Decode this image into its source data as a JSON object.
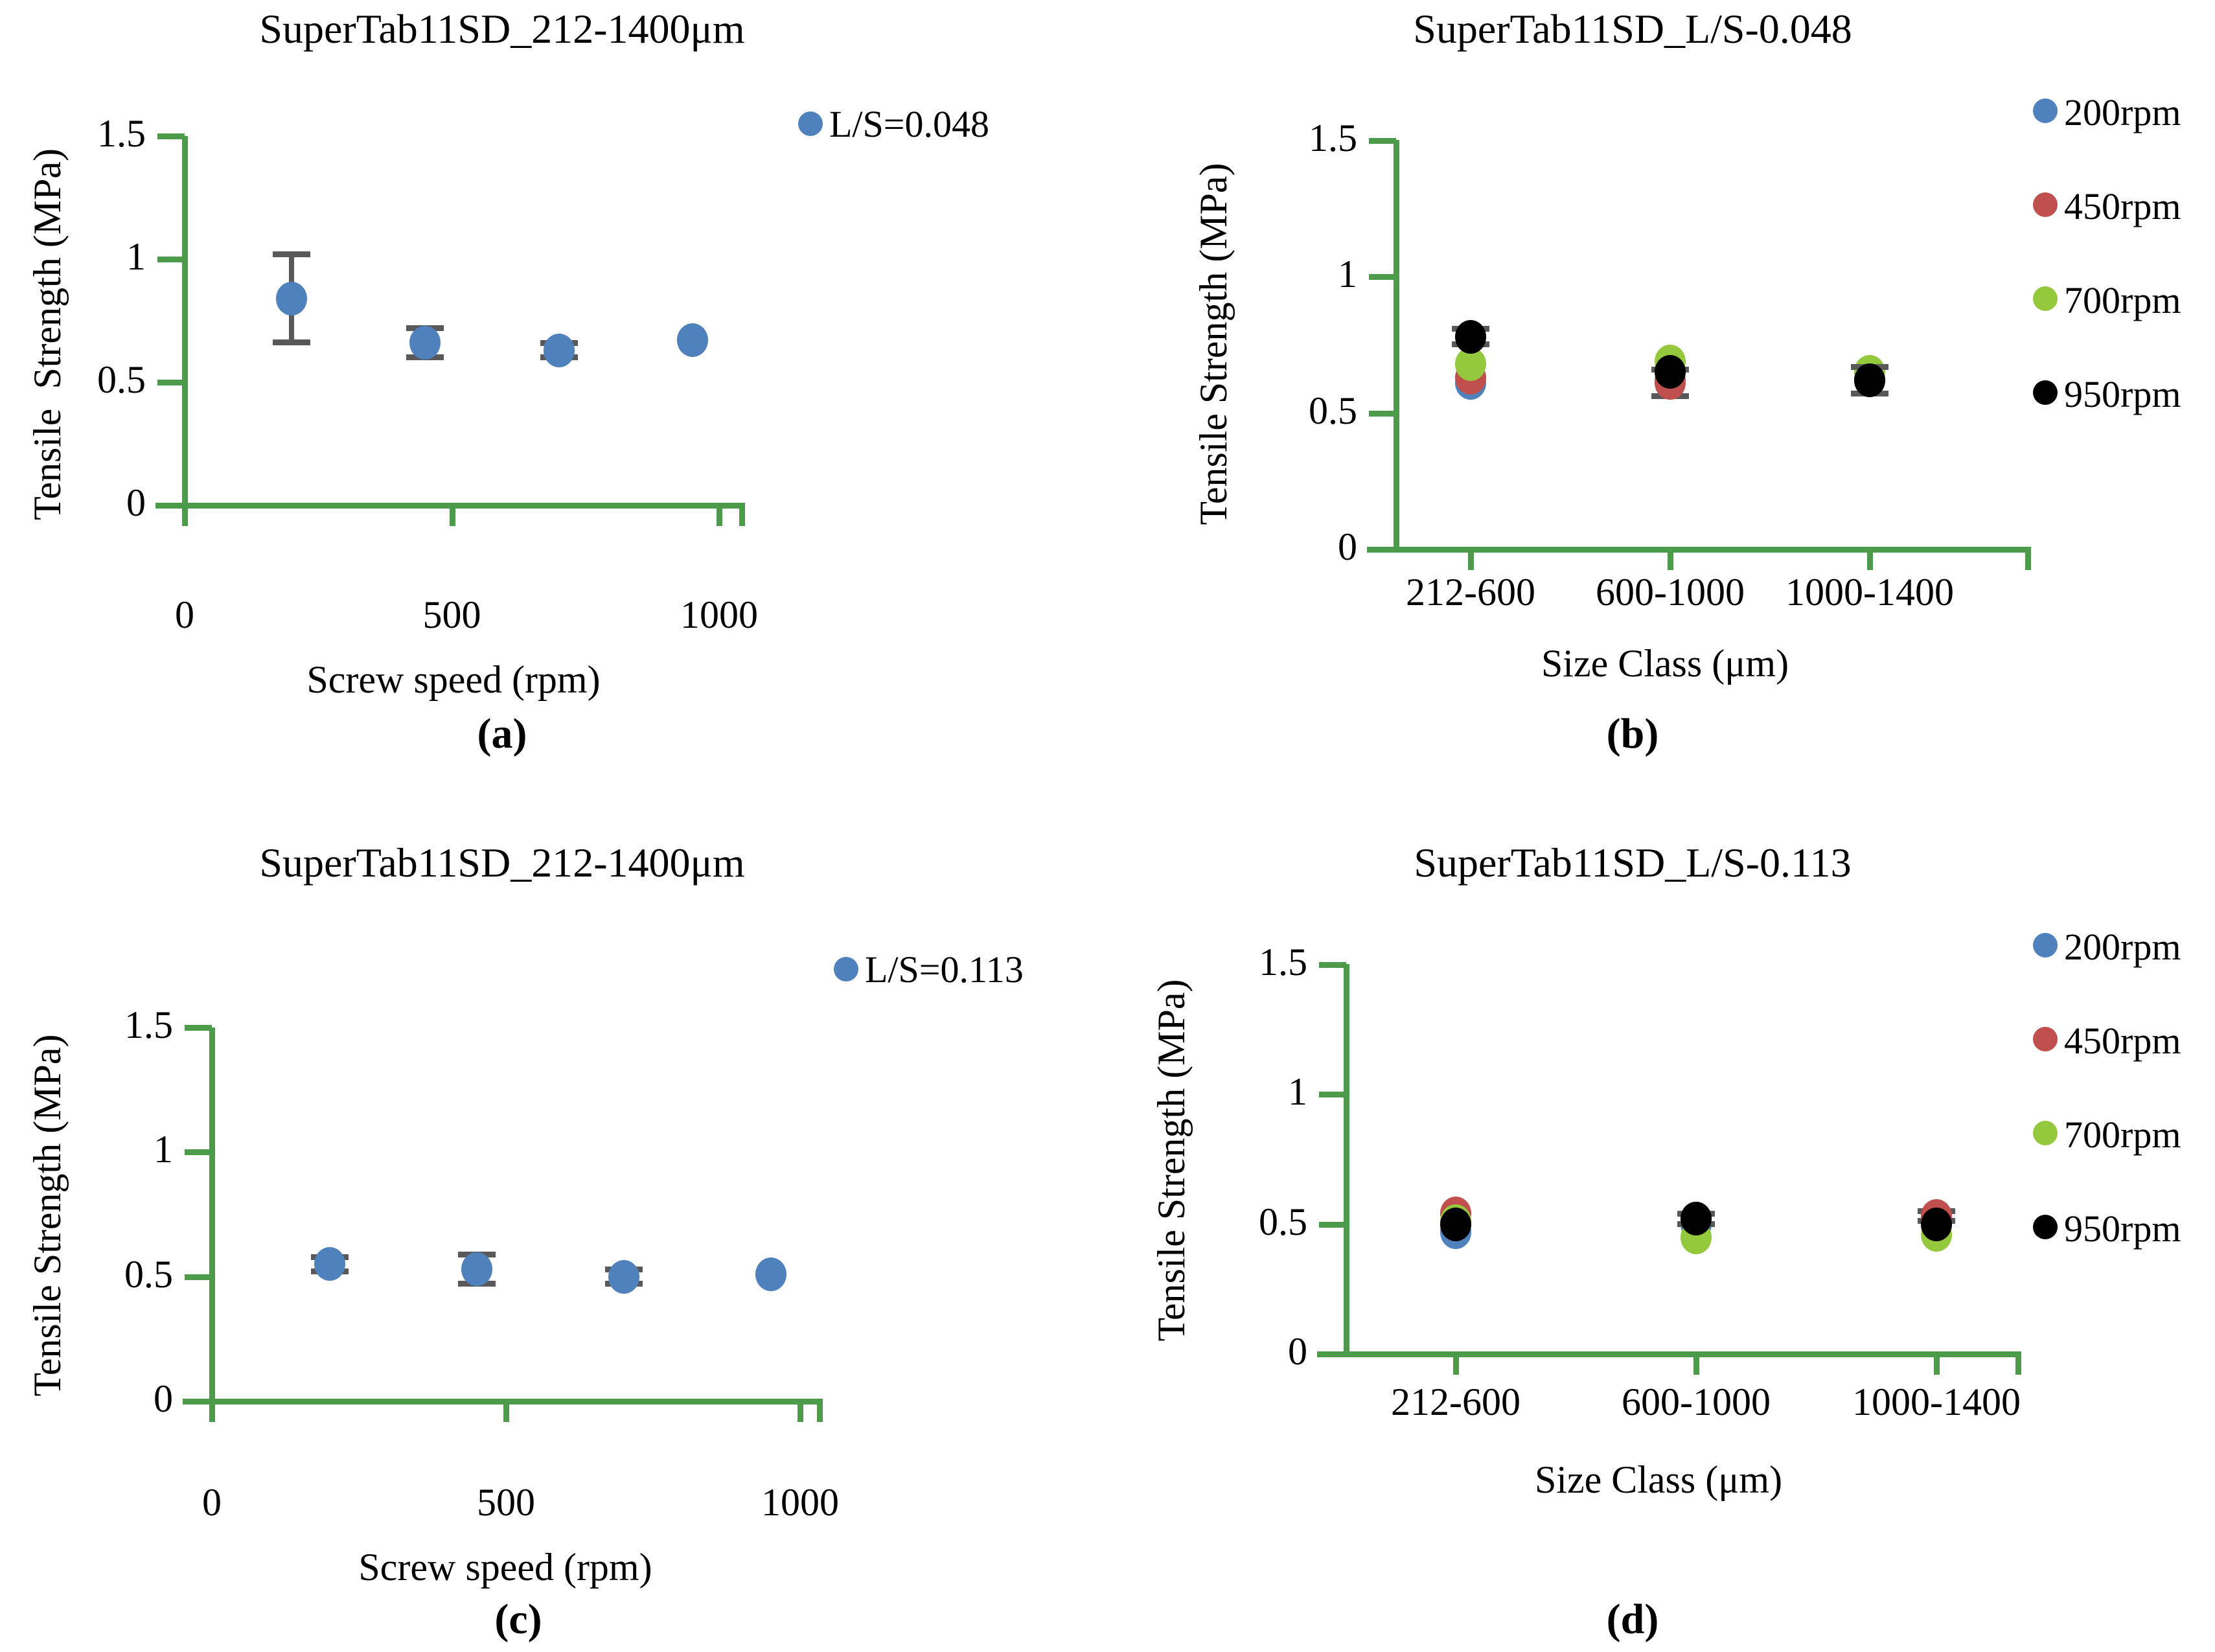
{
  "figure": {
    "captions": [
      "(a)",
      "(b)",
      "(c)",
      "(d)"
    ]
  },
  "colors": {
    "axis_green": "#4b9b4a",
    "error_grey": "#595959",
    "marker_blue": "#4f81bd",
    "marker_red": "#c0504d",
    "marker_green": "#94c83d",
    "marker_black": "#000000"
  },
  "chart_data": [
    {
      "id": "a",
      "type": "scatter",
      "title": "SuperTab11SD_212-1400μm",
      "ylabel": "Tensile  Strength (MPa)",
      "xlabel": "Screw speed (rpm)",
      "legend": [
        {
          "label": "L/S=0.048",
          "color_key": "marker_blue"
        }
      ],
      "legend_position": "top-right",
      "xlim": [
        0,
        1150
      ],
      "xticks": [
        0,
        500,
        1000
      ],
      "ylim": [
        0,
        1.5
      ],
      "yticks": [
        0,
        0.5,
        1,
        1.5
      ],
      "grid": false,
      "series": [
        {
          "name": "L/S=0.048",
          "color_key": "marker_blue",
          "points": [
            {
              "x": 200,
              "y": 0.84,
              "err": 0.18
            },
            {
              "x": 450,
              "y": 0.66,
              "err": 0.06
            },
            {
              "x": 700,
              "y": 0.63,
              "err": 0.03
            },
            {
              "x": 950,
              "y": 0.67,
              "err": 0
            }
          ]
        }
      ]
    },
    {
      "id": "b",
      "type": "scatter",
      "title": "SuperTab11SD_L/S-0.048",
      "ylabel": "Tensile Strength (MPa)",
      "xlabel": "Size Class (μm)",
      "categories": [
        "212-600",
        "600-1000",
        "1000-1400"
      ],
      "ylim": [
        0,
        1.5
      ],
      "yticks": [
        0,
        0.5,
        1,
        1.5
      ],
      "grid": false,
      "legend_position": "right",
      "series": [
        {
          "name": "200rpm",
          "color_key": "marker_blue",
          "values": [
            0.61,
            0.62,
            0.62
          ],
          "errs": [
            0,
            0,
            0
          ]
        },
        {
          "name": "450rpm",
          "color_key": "marker_red",
          "values": [
            0.63,
            0.61,
            0.62
          ],
          "errs": [
            0,
            0.05,
            0
          ]
        },
        {
          "name": "700rpm",
          "color_key": "marker_green",
          "values": [
            0.68,
            0.69,
            0.65
          ],
          "errs": [
            0,
            0,
            0
          ]
        },
        {
          "name": "950rpm",
          "color_key": "marker_black",
          "values": [
            0.78,
            0.65,
            0.62
          ],
          "errs": [
            0.03,
            0,
            0.05
          ]
        }
      ]
    },
    {
      "id": "c",
      "type": "scatter",
      "title": "SuperTab11SD_212-1400μm",
      "ylabel": "Tensile Strength (MPa)",
      "xlabel": "Screw speed (rpm)",
      "legend": [
        {
          "label": "L/S=0.113",
          "color_key": "marker_blue"
        }
      ],
      "legend_position": "top-right",
      "xlim": [
        0,
        1150
      ],
      "xticks": [
        0,
        500,
        1000
      ],
      "ylim": [
        0,
        1.5
      ],
      "yticks": [
        0,
        0.5,
        1,
        1.5
      ],
      "grid": false,
      "series": [
        {
          "name": "L/S=0.113",
          "color_key": "marker_blue",
          "points": [
            {
              "x": 200,
              "y": 0.55,
              "err": 0.03
            },
            {
              "x": 450,
              "y": 0.53,
              "err": 0.06
            },
            {
              "x": 700,
              "y": 0.5,
              "err": 0.03
            },
            {
              "x": 950,
              "y": 0.51,
              "err": 0
            }
          ]
        }
      ]
    },
    {
      "id": "d",
      "type": "scatter",
      "title": "SuperTab11SD_L/S-0.113",
      "ylabel": "Tensile Strength (MPa)",
      "xlabel": "Size Class (μm)",
      "categories": [
        "212-600",
        "600-1000",
        "1000-1400"
      ],
      "ylim": [
        0,
        1.5
      ],
      "yticks": [
        0,
        0.5,
        1,
        1.5
      ],
      "grid": false,
      "legend_position": "right",
      "series": [
        {
          "name": "200rpm",
          "color_key": "marker_blue",
          "values": [
            0.47,
            0.5,
            0.5
          ],
          "errs": [
            0,
            0,
            0
          ]
        },
        {
          "name": "450rpm",
          "color_key": "marker_red",
          "values": [
            0.54,
            0.52,
            0.53
          ],
          "errs": [
            0,
            0,
            0.02
          ]
        },
        {
          "name": "700rpm",
          "color_key": "marker_green",
          "values": [
            0.51,
            0.45,
            0.46
          ],
          "errs": [
            0,
            0,
            0
          ]
        },
        {
          "name": "950rpm",
          "color_key": "marker_black",
          "values": [
            0.5,
            0.52,
            0.5
          ],
          "errs": [
            0,
            0.02,
            0
          ]
        }
      ]
    }
  ]
}
